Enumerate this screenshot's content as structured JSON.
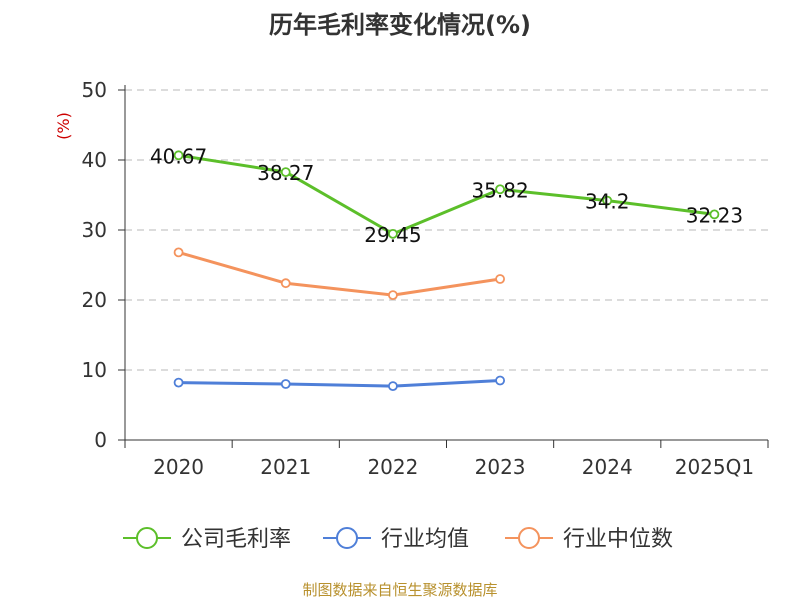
{
  "chart_data": {
    "type": "line",
    "title": "历年毛利率变化情况(%)",
    "ylabel": "(%)",
    "categories": [
      "2020",
      "2021",
      "2022",
      "2023",
      "2024",
      "2025Q1"
    ],
    "ylim": [
      0,
      50
    ],
    "yticks": [
      0,
      10,
      20,
      30,
      40,
      50
    ],
    "grid": true,
    "legend_position": "bottom",
    "series": [
      {
        "name": "公司毛利率",
        "color": "#5cbf2a",
        "values": [
          40.67,
          38.27,
          29.45,
          35.82,
          34.2,
          32.23
        ],
        "labels": [
          "40.67",
          "38.27",
          "29.45",
          "35.82",
          "34.2",
          "32.23"
        ],
        "show_labels": true
      },
      {
        "name": "行业均值",
        "color": "#4f7fd8",
        "values": [
          8.2,
          8.0,
          7.7,
          8.5,
          null,
          null
        ],
        "show_labels": false
      },
      {
        "name": "行业中位数",
        "color": "#f4935d",
        "values": [
          26.8,
          22.4,
          20.7,
          23.0,
          null,
          null
        ],
        "show_labels": false
      }
    ]
  },
  "footer": "制图数据来自恒生聚源数据库"
}
